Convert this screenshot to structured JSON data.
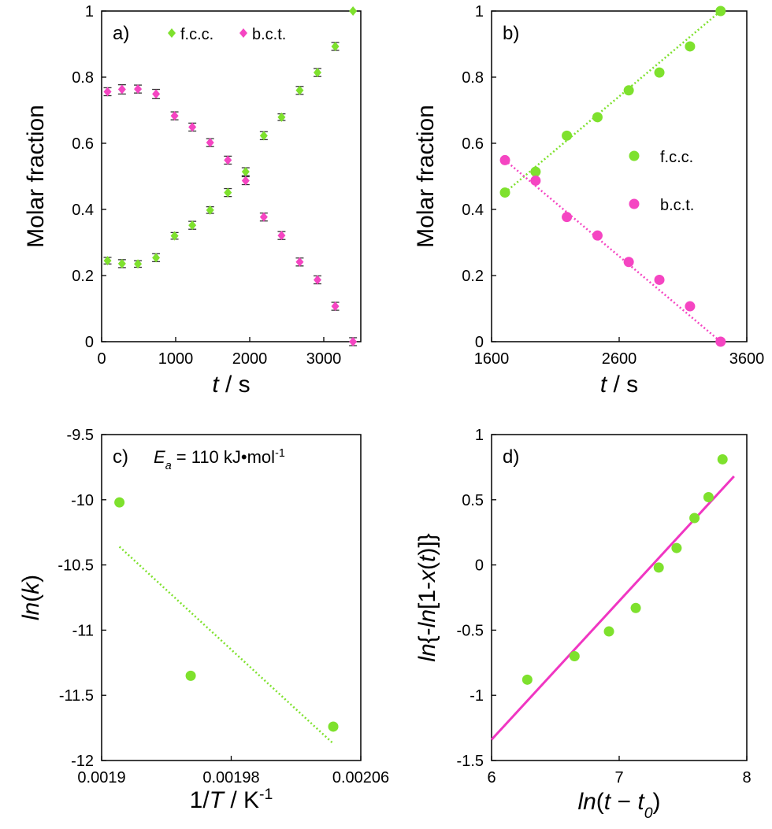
{
  "colors": {
    "fcc": "#7ee12d",
    "bct": "#f545c2",
    "line_d": "#f036c2",
    "errorbar": "#333333",
    "axis": "#000000"
  },
  "chart_data": [
    {
      "panel": "a)",
      "type": "scatter",
      "xlabel_italic": "t",
      "xlabel_rest": " / s",
      "ylabel": "Molar fraction",
      "xlim": [
        0,
        3500
      ],
      "ylim": [
        0,
        1
      ],
      "xticks": [
        0,
        1000,
        2000,
        3000
      ],
      "xtick_labels": [
        "0",
        "1000",
        "2000",
        "3000"
      ],
      "yticks": [
        0,
        0.2,
        0.4,
        0.6,
        0.8,
        1
      ],
      "ytick_labels": [
        "0",
        "0.2",
        "0.4",
        "0.6",
        "0.8",
        "1"
      ],
      "legend_position": "top",
      "series": [
        {
          "name": "f.c.c.",
          "color_key": "fcc",
          "marker": "diamond",
          "x": [
            80,
            275,
            490,
            735,
            985,
            1225,
            1465,
            1705,
            1945,
            2190,
            2430,
            2675,
            2915,
            3155,
            3395
          ],
          "y": [
            0.245,
            0.236,
            0.235,
            0.254,
            0.32,
            0.352,
            0.398,
            0.451,
            0.514,
            0.623,
            0.679,
            0.76,
            0.814,
            0.893,
            1.0
          ],
          "err": [
            0.01,
            0.012,
            0.01,
            0.012,
            0.01,
            0.012,
            0.01,
            0.012,
            0.012,
            0.012,
            0.01,
            0.012,
            0.012,
            0.012,
            0.0
          ]
        },
        {
          "name": "b.c.t.",
          "color_key": "bct",
          "marker": "diamond",
          "x": [
            80,
            275,
            490,
            735,
            985,
            1225,
            1465,
            1705,
            1945,
            2190,
            2430,
            2675,
            2915,
            3155,
            3395
          ],
          "y": [
            0.756,
            0.763,
            0.764,
            0.749,
            0.683,
            0.649,
            0.602,
            0.549,
            0.487,
            0.377,
            0.321,
            0.241,
            0.187,
            0.107,
            0.0
          ],
          "err": [
            0.012,
            0.014,
            0.012,
            0.014,
            0.012,
            0.012,
            0.012,
            0.012,
            0.012,
            0.012,
            0.012,
            0.012,
            0.012,
            0.012,
            0.012
          ]
        }
      ]
    },
    {
      "panel": "b)",
      "type": "scatter",
      "xlabel_italic": "t",
      "xlabel_rest": " / s",
      "ylabel": "Molar fraction",
      "xlim": [
        1600,
        3600
      ],
      "ylim": [
        0,
        1
      ],
      "xticks": [
        1600,
        2600,
        3600
      ],
      "xtick_labels": [
        "1600",
        "2600",
        "3600"
      ],
      "yticks": [
        0,
        0.2,
        0.4,
        0.6,
        0.8,
        1
      ],
      "ytick_labels": [
        "0",
        "0.2",
        "0.4",
        "0.6",
        "0.8",
        "1"
      ],
      "legend_position": "right-center",
      "series": [
        {
          "name": "f.c.c.",
          "color_key": "fcc",
          "marker": "circle",
          "x": [
            1705,
            1945,
            2190,
            2430,
            2675,
            2915,
            3155,
            3395
          ],
          "y": [
            0.451,
            0.514,
            0.623,
            0.679,
            0.76,
            0.814,
            0.893,
            1.0
          ],
          "fit": {
            "x": [
              1705,
              3395
            ],
            "y": [
              0.451,
              1.0
            ],
            "style": "dotted"
          }
        },
        {
          "name": "b.c.t.",
          "color_key": "bct",
          "marker": "circle",
          "x": [
            1705,
            1945,
            2190,
            2430,
            2675,
            2915,
            3155,
            3395
          ],
          "y": [
            0.549,
            0.487,
            0.377,
            0.321,
            0.241,
            0.187,
            0.107,
            0.0
          ],
          "fit": {
            "x": [
              1705,
              3395
            ],
            "y": [
              0.549,
              0.0
            ],
            "style": "dotted"
          }
        }
      ]
    },
    {
      "panel": "c)",
      "type": "scatter",
      "xlabel_main": "1/",
      "xlabel_italic": "T",
      "xlabel_rest": " / K",
      "xlabel_sup": "-1",
      "ylabel_italic": "ln",
      "ylabel_rest": "(",
      "ylabel_italic2": "k",
      "ylabel_end": ")",
      "annotation": {
        "E": "E",
        "sub": "a",
        "text": " = 110 kJ•mol",
        "sup": "-1"
      },
      "xlim": [
        0.0019,
        0.00206
      ],
      "ylim": [
        -12,
        -9.5
      ],
      "xticks": [
        0.0019,
        0.00198,
        0.00206
      ],
      "xtick_labels": [
        "0.0019",
        "0.00198",
        "0.00206"
      ],
      "yticks": [
        -12,
        -11.5,
        -11,
        -10.5,
        -10,
        -9.5
      ],
      "ytick_labels": [
        "-12",
        "-11.5",
        "-11",
        "-10.5",
        "-10",
        "-9.5"
      ],
      "series": [
        {
          "color_key": "fcc",
          "marker": "circle",
          "x": [
            0.001911,
            0.001955,
            0.002043
          ],
          "y": [
            -10.02,
            -11.35,
            -11.74
          ],
          "fit": {
            "x": [
              0.001911,
              0.002043
            ],
            "y": [
              -10.36,
              -11.87
            ],
            "style": "dotted"
          }
        }
      ]
    },
    {
      "panel": "d)",
      "type": "scatter",
      "xlabel_italic": "ln",
      "xlabel_rest": "(",
      "xlabel_italic2": "t",
      "xlabel_mid": " − ",
      "xlabel_italic3": "t",
      "xlabel_sub": "0",
      "xlabel_end": ")",
      "ylabel_parts": [
        "ln",
        "{-",
        "ln",
        "[1-",
        "x",
        "(",
        "t",
        ")]}"
      ],
      "xlim": [
        6,
        8
      ],
      "ylim": [
        -1.5,
        1
      ],
      "xticks": [
        6,
        7,
        8
      ],
      "xtick_labels": [
        "6",
        "7",
        "8"
      ],
      "yticks": [
        -1.5,
        -1,
        -0.5,
        0,
        0.5,
        1
      ],
      "ytick_labels": [
        "-1.5",
        "-1",
        "-0.5",
        "0",
        "0.5",
        "1"
      ],
      "series": [
        {
          "color_key": "fcc",
          "marker": "circle",
          "x": [
            6.28,
            6.65,
            6.92,
            7.13,
            7.31,
            7.45,
            7.59,
            7.7,
            7.81
          ],
          "y": [
            -0.88,
            -0.7,
            -0.51,
            -0.33,
            -0.02,
            0.13,
            0.36,
            0.52,
            0.81
          ],
          "fit": {
            "x": [
              6.0,
              7.9
            ],
            "y": [
              -1.34,
              0.68
            ],
            "style": "solid",
            "color_key": "line_d"
          }
        }
      ]
    }
  ]
}
